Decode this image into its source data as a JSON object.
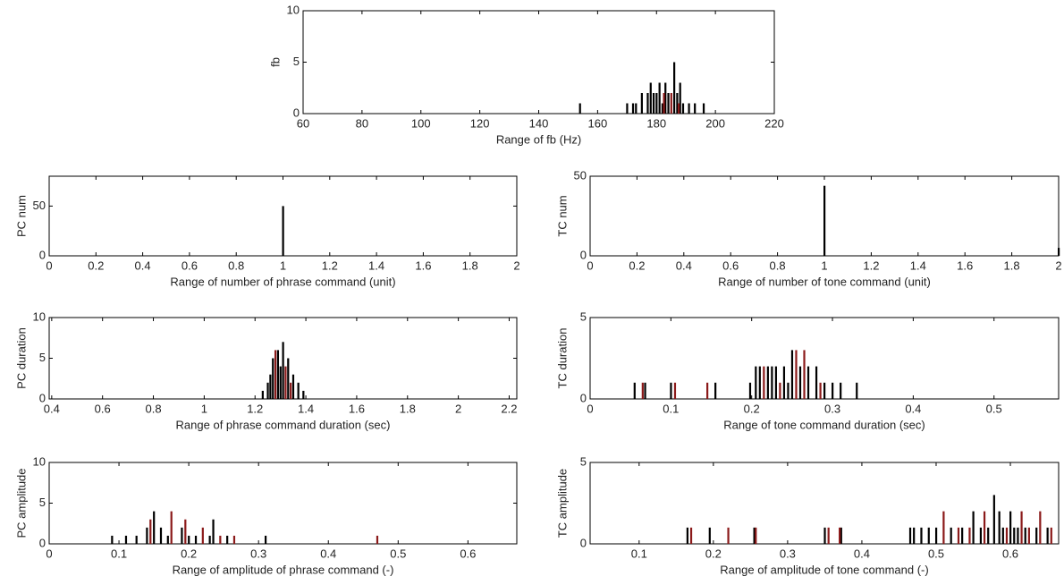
{
  "chart_data": [
    {
      "type": "bar",
      "xlabel": "Range of fb (Hz)",
      "ylabel": "fb",
      "xlim": [
        60,
        220
      ],
      "ylim": [
        0,
        10
      ],
      "xticks": [
        60,
        80,
        100,
        120,
        140,
        160,
        180,
        200,
        220
      ],
      "yticks": [
        0,
        5,
        10
      ],
      "series": [
        {
          "color": "#000000",
          "x": [
            154,
            170,
            172,
            173,
            175,
            177,
            178,
            179,
            180,
            181,
            182,
            183,
            184,
            186,
            187,
            188,
            189,
            191,
            193,
            196
          ],
          "values": [
            1,
            1,
            1,
            1,
            2,
            2,
            3,
            2,
            2,
            3,
            1,
            3,
            2,
            5,
            2,
            3,
            1,
            1,
            1,
            1
          ]
        },
        {
          "color": "#8b1a1a",
          "x": [
            182.5,
            185,
            187.5
          ],
          "values": [
            2,
            2,
            1
          ]
        }
      ]
    },
    {
      "type": "bar",
      "xlabel": "Range of number of phrase command (unit)",
      "ylabel": "PC num",
      "xlim": [
        0,
        2
      ],
      "ylim": [
        0,
        80
      ],
      "xticks": [
        0,
        0.2,
        0.4,
        0.6,
        0.8,
        1,
        1.2,
        1.4,
        1.6,
        1.8,
        2
      ],
      "yticks": [
        0,
        50
      ],
      "series": [
        {
          "color": "#000000",
          "x": [
            1
          ],
          "values": [
            50
          ]
        }
      ]
    },
    {
      "type": "bar",
      "xlabel": "Range of number of tone command (unit)",
      "ylabel": "TC num",
      "xlim": [
        0,
        2
      ],
      "ylim": [
        0,
        50
      ],
      "xticks": [
        0,
        0.2,
        0.4,
        0.6,
        0.8,
        1,
        1.2,
        1.4,
        1.6,
        1.8,
        2
      ],
      "yticks": [
        0,
        50
      ],
      "series": [
        {
          "color": "#000000",
          "x": [
            1,
            2
          ],
          "values": [
            44,
            5
          ]
        }
      ]
    },
    {
      "type": "bar",
      "xlabel": "Range of phrase command duration (sec)",
      "ylabel": "PC duration",
      "xlim": [
        0.39,
        2.23
      ],
      "ylim": [
        0,
        10
      ],
      "xticks": [
        0.4,
        0.6,
        0.8,
        1,
        1.2,
        1.4,
        1.6,
        1.8,
        2,
        2.2
      ],
      "yticks": [
        0,
        5,
        10
      ],
      "series": [
        {
          "color": "#000000",
          "x": [
            1.23,
            1.25,
            1.26,
            1.27,
            1.29,
            1.3,
            1.31,
            1.33,
            1.35,
            1.37,
            1.39
          ],
          "values": [
            1,
            2,
            3,
            5,
            6,
            4,
            7,
            5,
            3,
            2,
            1
          ]
        },
        {
          "color": "#8b1a1a",
          "x": [
            1.28,
            1.32,
            1.34
          ],
          "values": [
            6,
            4,
            2
          ]
        }
      ]
    },
    {
      "type": "bar",
      "xlabel": "Range of tone command duration (sec)",
      "ylabel": "TC duration",
      "xlim": [
        0,
        0.58
      ],
      "ylim": [
        0,
        5
      ],
      "xticks": [
        0,
        0.1,
        0.2,
        0.3,
        0.4,
        0.5
      ],
      "yticks": [
        0,
        5
      ],
      "series": [
        {
          "color": "#000000",
          "x": [
            0.055,
            0.068,
            0.1,
            0.155,
            0.198,
            0.205,
            0.21,
            0.22,
            0.225,
            0.23,
            0.24,
            0.245,
            0.25,
            0.26,
            0.27,
            0.28,
            0.29,
            0.3,
            0.31,
            0.33
          ],
          "values": [
            1,
            1,
            1,
            1,
            1,
            2,
            2,
            2,
            2,
            2,
            2,
            1,
            3,
            2,
            2,
            2,
            1,
            1,
            1,
            1
          ]
        },
        {
          "color": "#8b1a1a",
          "x": [
            0.065,
            0.105,
            0.145,
            0.215,
            0.235,
            0.255,
            0.265,
            0.285
          ],
          "values": [
            1,
            1,
            1,
            2,
            1,
            3,
            3,
            1
          ]
        }
      ]
    },
    {
      "type": "bar",
      "xlabel": "Range of amplitude of phrase command (-)",
      "ylabel": "PC amplitude",
      "xlim": [
        0,
        0.67
      ],
      "ylim": [
        0,
        10
      ],
      "xticks": [
        0,
        0.1,
        0.2,
        0.3,
        0.4,
        0.5,
        0.6
      ],
      "yticks": [
        0,
        5,
        10
      ],
      "series": [
        {
          "color": "#000000",
          "x": [
            0.09,
            0.11,
            0.125,
            0.14,
            0.15,
            0.16,
            0.17,
            0.19,
            0.2,
            0.21,
            0.23,
            0.235,
            0.255,
            0.31
          ],
          "values": [
            1,
            1,
            1,
            2,
            4,
            2,
            1,
            2,
            1,
            1,
            1,
            3,
            1,
            1
          ]
        },
        {
          "color": "#8b1a1a",
          "x": [
            0.145,
            0.175,
            0.195,
            0.22,
            0.245,
            0.265,
            0.47
          ],
          "values": [
            3,
            4,
            3,
            2,
            1,
            1,
            1
          ]
        }
      ]
    },
    {
      "type": "bar",
      "xlabel": "Range of amplitude of tone command (-)",
      "ylabel": "TC amplitude",
      "xlim": [
        0.034,
        0.665
      ],
      "ylim": [
        0,
        5
      ],
      "xticks": [
        0.1,
        0.2,
        0.3,
        0.4,
        0.5,
        0.6
      ],
      "yticks": [
        0,
        5
      ],
      "series": [
        {
          "color": "#000000",
          "x": [
            0.165,
            0.195,
            0.255,
            0.35,
            0.372,
            0.465,
            0.47,
            0.48,
            0.49,
            0.5,
            0.52,
            0.535,
            0.55,
            0.56,
            0.57,
            0.578,
            0.585,
            0.59,
            0.6,
            0.605,
            0.61,
            0.62,
            0.635,
            0.65
          ],
          "values": [
            1,
            1,
            1,
            1,
            1,
            1,
            1,
            1,
            1,
            1,
            1,
            1,
            2,
            1,
            1,
            3,
            2,
            1,
            2,
            1,
            1,
            1,
            1,
            1
          ]
        },
        {
          "color": "#8b1a1a",
          "x": [
            0.17,
            0.22,
            0.257,
            0.355,
            0.37,
            0.51,
            0.53,
            0.545,
            0.565,
            0.595,
            0.615,
            0.625,
            0.64,
            0.655
          ],
          "values": [
            1,
            1,
            1,
            1,
            1,
            2,
            1,
            1,
            2,
            1,
            2,
            1,
            2,
            1
          ]
        }
      ]
    }
  ]
}
